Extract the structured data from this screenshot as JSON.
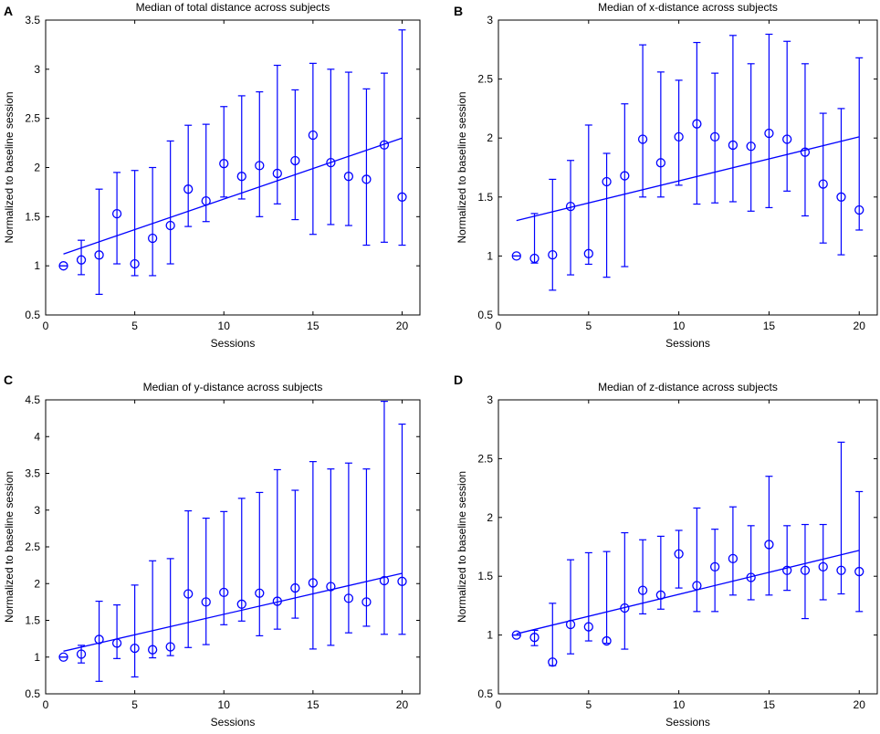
{
  "figure": {
    "background": "#ffffff",
    "series_color": "#0000ff"
  },
  "chart_data": [
    {
      "id": "A",
      "type": "errorbar+line",
      "title": "Median of total distance across subjects",
      "xlabel": "Sessions",
      "ylabel": "Normalized to baseline session",
      "xlim": [
        0,
        21
      ],
      "ylim": [
        0.5,
        3.5
      ],
      "xticks": [
        0,
        5,
        10,
        15,
        20
      ],
      "xtick_labels": [
        "0",
        "5",
        "10",
        "15",
        "20"
      ],
      "yticks": [
        0.5,
        1,
        1.5,
        2,
        2.5,
        3,
        3.5
      ],
      "ytick_labels": [
        "0.5",
        "1",
        "1.5",
        "2",
        "2.5",
        "3",
        "3.5"
      ],
      "x": [
        1,
        2,
        3,
        4,
        5,
        6,
        7,
        8,
        9,
        10,
        11,
        12,
        13,
        14,
        15,
        16,
        17,
        18,
        19,
        20
      ],
      "median": [
        1.0,
        1.06,
        1.11,
        1.53,
        1.02,
        1.28,
        1.41,
        1.78,
        1.66,
        2.04,
        1.91,
        2.02,
        1.94,
        2.07,
        2.33,
        2.05,
        1.91,
        1.88,
        2.23,
        1.7
      ],
      "lower": [
        1.0,
        0.91,
        0.71,
        1.02,
        0.9,
        0.9,
        1.02,
        1.4,
        1.45,
        1.7,
        1.68,
        1.5,
        1.63,
        1.47,
        1.32,
        1.42,
        1.41,
        1.21,
        1.24,
        1.21
      ],
      "upper": [
        1.0,
        1.26,
        1.78,
        1.95,
        1.97,
        2.0,
        2.27,
        2.43,
        2.44,
        2.62,
        2.73,
        2.77,
        3.04,
        2.79,
        3.06,
        3.0,
        2.97,
        2.8,
        2.96,
        3.4
      ],
      "trend": {
        "x": [
          1,
          20
        ],
        "y": [
          1.12,
          2.3
        ]
      }
    },
    {
      "id": "B",
      "type": "errorbar+line",
      "title": "Median of x-distance across subjects",
      "xlabel": "Sessions",
      "ylabel": "Normalized to baseline session",
      "xlim": [
        0,
        21
      ],
      "ylim": [
        0.5,
        3
      ],
      "xticks": [
        0,
        5,
        10,
        15,
        20
      ],
      "xtick_labels": [
        "0",
        "5",
        "10",
        "15",
        "20"
      ],
      "yticks": [
        0.5,
        1,
        1.5,
        2,
        2.5,
        3
      ],
      "ytick_labels": [
        "0.5",
        "1",
        "1.5",
        "2",
        "2.5",
        "3"
      ],
      "x": [
        1,
        2,
        3,
        4,
        5,
        6,
        7,
        8,
        9,
        10,
        11,
        12,
        13,
        14,
        15,
        16,
        17,
        18,
        19,
        20
      ],
      "median": [
        1.0,
        0.98,
        1.01,
        1.42,
        1.02,
        1.63,
        1.68,
        1.99,
        1.79,
        2.01,
        2.12,
        2.01,
        1.94,
        1.93,
        2.04,
        1.99,
        1.88,
        1.61,
        1.5,
        1.39
      ],
      "lower": [
        1.0,
        0.94,
        0.71,
        0.84,
        0.93,
        0.82,
        0.91,
        1.5,
        1.5,
        1.6,
        1.44,
        1.45,
        1.46,
        1.38,
        1.41,
        1.55,
        1.34,
        1.11,
        1.01,
        1.22
      ],
      "upper": [
        1.0,
        1.36,
        1.65,
        1.81,
        2.11,
        1.87,
        2.29,
        2.79,
        2.56,
        2.49,
        2.81,
        2.55,
        2.87,
        2.63,
        2.88,
        2.82,
        2.63,
        2.21,
        2.25,
        2.68
      ],
      "trend": {
        "x": [
          1,
          20
        ],
        "y": [
          1.3,
          2.01
        ]
      }
    },
    {
      "id": "C",
      "type": "errorbar+line",
      "title": "Median of y-distance across subjects",
      "xlabel": "Sessions",
      "ylabel": "Normalized to baseline session",
      "xlim": [
        0,
        21
      ],
      "ylim": [
        0.5,
        4.5
      ],
      "xticks": [
        0,
        5,
        10,
        15,
        20
      ],
      "xtick_labels": [
        "0",
        "5",
        "10",
        "15",
        "20"
      ],
      "yticks": [
        0.5,
        1,
        1.5,
        2,
        2.5,
        3,
        3.5,
        4,
        4.5
      ],
      "ytick_labels": [
        "0.5",
        "1",
        "1.5",
        "2",
        "2.5",
        "3",
        "3.5",
        "4",
        "4.5"
      ],
      "x": [
        1,
        2,
        3,
        4,
        5,
        6,
        7,
        8,
        9,
        10,
        11,
        12,
        13,
        14,
        15,
        16,
        17,
        18,
        19,
        20
      ],
      "median": [
        1.0,
        1.04,
        1.24,
        1.19,
        1.12,
        1.1,
        1.14,
        1.86,
        1.75,
        1.88,
        1.72,
        1.87,
        1.76,
        1.94,
        2.01,
        1.96,
        1.8,
        1.75,
        2.04,
        2.03
      ],
      "lower": [
        1.0,
        0.92,
        0.67,
        0.98,
        0.73,
        0.99,
        1.02,
        1.13,
        1.17,
        1.44,
        1.49,
        1.29,
        1.38,
        1.53,
        1.11,
        1.16,
        1.33,
        1.42,
        1.31,
        1.31
      ],
      "upper": [
        1.0,
        1.16,
        1.76,
        1.71,
        1.98,
        2.31,
        2.34,
        2.99,
        2.89,
        2.98,
        3.16,
        3.24,
        3.55,
        3.27,
        3.66,
        3.56,
        3.64,
        3.56,
        4.48,
        4.17
      ],
      "trend": {
        "x": [
          1,
          20
        ],
        "y": [
          1.08,
          2.14
        ]
      }
    },
    {
      "id": "D",
      "type": "errorbar+line",
      "title": "Median of z-distance across subjects",
      "xlabel": "Sessions",
      "ylabel": "Normalized to baseline session",
      "xlim": [
        0,
        21
      ],
      "ylim": [
        0.5,
        3
      ],
      "xticks": [
        0,
        5,
        10,
        15,
        20
      ],
      "xtick_labels": [
        "0",
        "5",
        "10",
        "15",
        "20"
      ],
      "yticks": [
        0.5,
        1,
        1.5,
        2,
        2.5,
        3
      ],
      "ytick_labels": [
        "0.5",
        "1",
        "1.5",
        "2",
        "2.5",
        "3"
      ],
      "x": [
        1,
        2,
        3,
        4,
        5,
        6,
        7,
        8,
        9,
        10,
        11,
        12,
        13,
        14,
        15,
        16,
        17,
        18,
        19,
        20
      ],
      "median": [
        1.0,
        0.98,
        0.77,
        1.09,
        1.07,
        0.95,
        1.23,
        1.38,
        1.34,
        1.69,
        1.42,
        1.58,
        1.65,
        1.49,
        1.77,
        1.55,
        1.55,
        1.58,
        1.55,
        1.54
      ],
      "lower": [
        1.0,
        0.91,
        0.74,
        0.84,
        0.95,
        0.93,
        0.88,
        1.18,
        1.22,
        1.4,
        1.2,
        1.2,
        1.34,
        1.3,
        1.34,
        1.38,
        1.14,
        1.3,
        1.35,
        1.2
      ],
      "upper": [
        1.0,
        1.04,
        1.27,
        1.64,
        1.7,
        1.71,
        1.87,
        1.81,
        1.84,
        1.89,
        2.08,
        1.9,
        2.09,
        1.93,
        2.35,
        1.93,
        1.94,
        1.94,
        2.64,
        2.22
      ],
      "trend": {
        "x": [
          1,
          20
        ],
        "y": [
          1.01,
          1.72
        ]
      }
    }
  ]
}
